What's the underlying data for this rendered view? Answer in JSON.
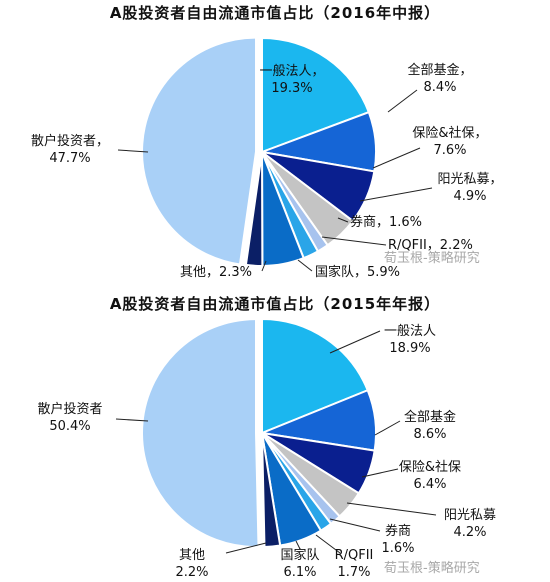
{
  "chart_data": [
    {
      "type": "pie",
      "title": "A股投资者自由流通市值占比（2016年中报）",
      "slices": [
        {
          "label": "一般法人",
          "value": 19.3,
          "display": "19.3%",
          "color": "#1bb7ef"
        },
        {
          "label": "全部基金",
          "value": 8.4,
          "display": "8.4%",
          "color": "#1565d6"
        },
        {
          "label": "保险&社保",
          "value": 7.6,
          "display": "7.6%",
          "color": "#0a1f8f"
        },
        {
          "label": "阳光私募",
          "value": 4.9,
          "display": "4.9%",
          "color": "#c4c4c4"
        },
        {
          "label": "券商",
          "value": 1.6,
          "display": "1.6%",
          "color": "#a7c3ee"
        },
        {
          "label": "R/QFII",
          "value": 2.2,
          "display": "2.2%",
          "color": "#2aa5e8"
        },
        {
          "label": "国家队",
          "value": 5.9,
          "display": "5.9%",
          "color": "#0a6cc7"
        },
        {
          "label": "其他",
          "value": 2.3,
          "display": "2.3%",
          "color": "#0b1f66"
        },
        {
          "label": "散户投资者",
          "value": 47.7,
          "display": "47.7%",
          "color": "#a9d0f7"
        }
      ]
    },
    {
      "type": "pie",
      "title": "A股投资者自由流通市值占比（2015年年报）",
      "slices": [
        {
          "label": "一般法人",
          "value": 18.9,
          "display": "18.9%",
          "color": "#1bb7ef"
        },
        {
          "label": "全部基金",
          "value": 8.6,
          "display": "8.6%",
          "color": "#1565d6"
        },
        {
          "label": "保险&社保",
          "value": 6.4,
          "display": "6.4%",
          "color": "#0a1f8f"
        },
        {
          "label": "阳光私募",
          "value": 4.2,
          "display": "4.2%",
          "color": "#c4c4c4"
        },
        {
          "label": "券商",
          "value": 1.6,
          "display": "1.6%",
          "color": "#a7c3ee"
        },
        {
          "label": "R/QFII",
          "value": 1.7,
          "display": "1.7%",
          "color": "#2aa5e8"
        },
        {
          "label": "国家队",
          "value": 6.1,
          "display": "6.1%",
          "color": "#0a6cc7"
        },
        {
          "label": "其他",
          "value": 2.2,
          "display": "2.2%",
          "color": "#0b1f66"
        },
        {
          "label": "散户投资者",
          "value": 50.4,
          "display": "50.4%",
          "color": "#a9d0f7"
        }
      ]
    }
  ],
  "watermark": "荀玉根-策略研究"
}
